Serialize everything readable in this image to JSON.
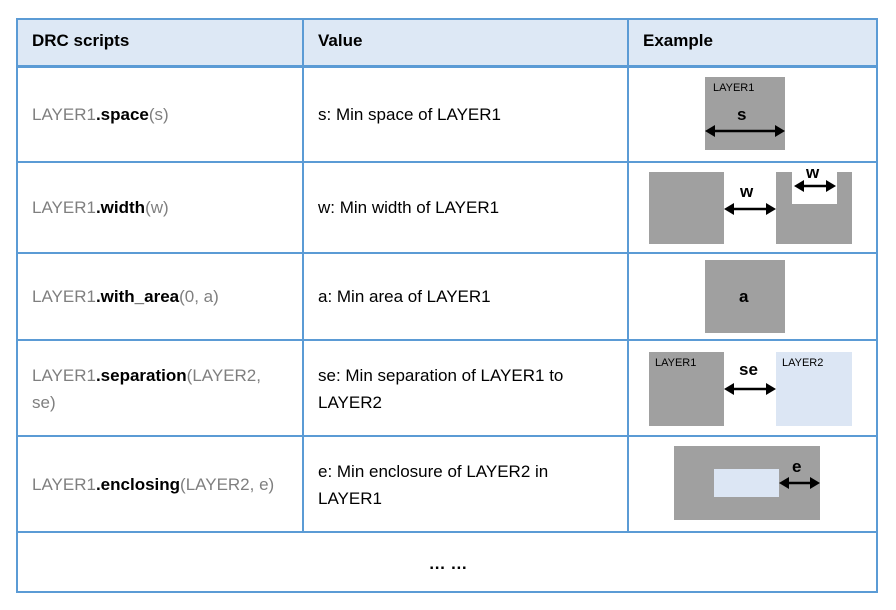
{
  "header": {
    "col1": "DRC scripts",
    "col2": "Value",
    "col3": "Example"
  },
  "rows": [
    {
      "prefix": "LAYER1",
      "method": ".space",
      "args": "(s)",
      "value": "s: Min space of LAYER1",
      "example": {
        "layer_label": "LAYER1",
        "symbol": "s"
      }
    },
    {
      "prefix": "LAYER1",
      "method": ".width",
      "args": "(w)",
      "value": "w: Min width of LAYER1",
      "example": {
        "symbol_between": "w",
        "symbol_notch": "w"
      }
    },
    {
      "prefix": "LAYER1",
      "method": ".with_area",
      "args": "(0, a)",
      "value": "a: Min area of LAYER1",
      "example": {
        "symbol": "a"
      }
    },
    {
      "prefix": "LAYER1",
      "method": ".separation",
      "args_line1": "(LAYER2,",
      "args_line2": "se)",
      "value_line1": "se: Min separation of LAYER1 to",
      "value_line2": "LAYER2",
      "example": {
        "left_label": "LAYER1",
        "right_label": "LAYER2",
        "symbol": "se"
      }
    },
    {
      "prefix": "LAYER1",
      "method": ".enclosing",
      "args": "(LAYER2, e)",
      "value_line1": "e: Min enclosure of LAYER2 in",
      "value_line2": "LAYER1",
      "example": {
        "symbol": "e"
      }
    }
  ],
  "footer": {
    "ellipsis": "… …"
  },
  "colors": {
    "grid": "#5b9bd5",
    "header_bg": "#dde8f5",
    "layer1": "#a0a0a0",
    "layer2": "#dce6f4",
    "script_gray": "#7f7f7f"
  }
}
